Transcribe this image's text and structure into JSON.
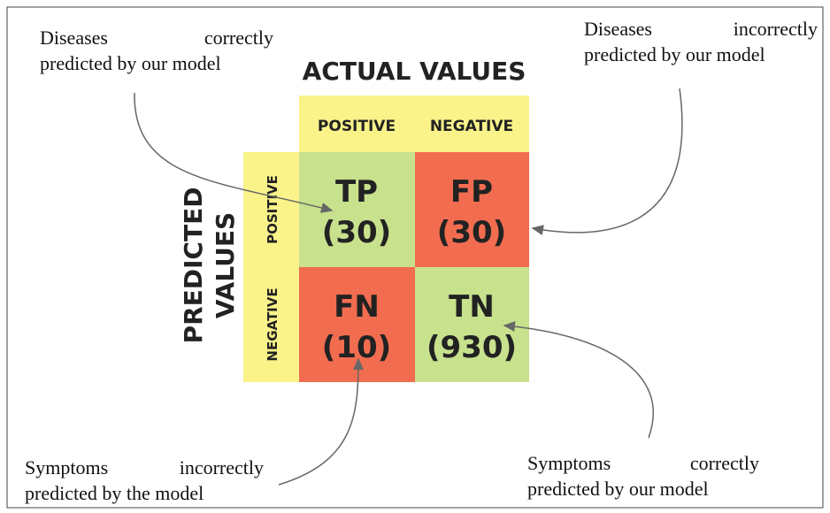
{
  "matrix": {
    "column_header": "ACTUAL VALUES",
    "columns": [
      "POSITIVE",
      "NEGATIVE"
    ],
    "row_header": [
      "PREDICTED",
      "VALUES"
    ],
    "rows": [
      "POSITIVE",
      "NEGATIVE"
    ],
    "cells": [
      [
        {
          "label": "TP",
          "count": "(30)"
        },
        {
          "label": "FP",
          "count": "(30)"
        }
      ],
      [
        {
          "label": "FN",
          "count": "(10)"
        },
        {
          "label": "TN",
          "count": "(930)"
        }
      ]
    ]
  },
  "annotations": [
    {
      "lines": [
        "Diseases correctly",
        "predicted by our model"
      ]
    },
    {
      "lines": [
        "Diseases incorrectly",
        "predicted by our model"
      ]
    },
    {
      "lines": [
        "Symptoms incorrectly",
        "predicted by the model"
      ]
    },
    {
      "lines": [
        "Symptoms correctly",
        "predicted by our model"
      ]
    }
  ]
}
